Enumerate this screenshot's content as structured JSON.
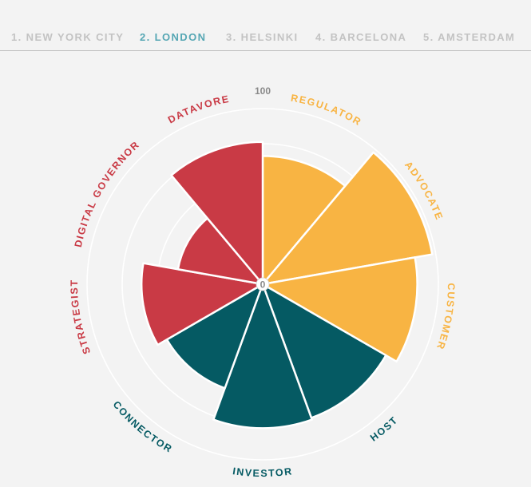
{
  "tabs": [
    {
      "label": "1. NEW YORK CITY",
      "active": false
    },
    {
      "label": "2. LONDON",
      "active": true
    },
    {
      "label": "3. HELSINKI",
      "active": false
    },
    {
      "label": "4. BARCELONA",
      "active": false
    },
    {
      "label": "5. AMSTERDAM",
      "active": false
    }
  ],
  "colors": {
    "background": "#f3f3f3",
    "active_tab": "#56a7b4",
    "inactive_tab": "#c3c3c3",
    "gold": "#f8b443",
    "red": "#c93a45",
    "teal": "#055a63",
    "ring": "#ffffff"
  },
  "chart_data": {
    "type": "polar-area",
    "rmin": 0,
    "rmax": 100,
    "tick_labels": {
      "max": "100",
      "min": "0"
    },
    "categories": [
      "REGULATOR",
      "ADVOCATE",
      "CUSTOMER",
      "HOST",
      "INVESTOR",
      "CONNECTOR",
      "STRATEGIST",
      "DIGITAL GOVERNOR",
      "DATAVORE"
    ],
    "groups": [
      "gold",
      "gold",
      "gold",
      "teal",
      "teal",
      "teal",
      "red",
      "red",
      "red"
    ],
    "values": [
      73,
      98,
      88,
      81,
      82,
      63,
      69,
      49,
      81
    ]
  }
}
